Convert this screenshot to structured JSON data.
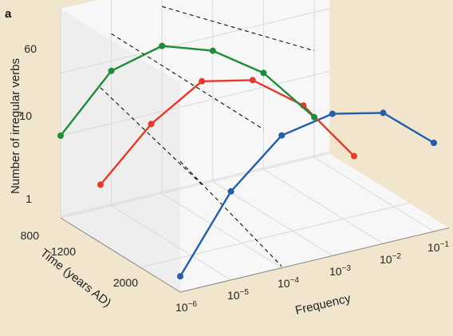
{
  "panel_label": "a",
  "colors": {
    "background": "#f1e6cd",
    "panel": "#f7f7f7",
    "back_wall": "#e9e9e9",
    "grid": "#d9d9d9",
    "series": [
      "#1f5fae",
      "#e63a27",
      "#1f8c3a"
    ],
    "guide": "#111111"
  },
  "chart_data": {
    "type": "line",
    "projection": "3d",
    "title": "",
    "xlabel": "Frequency",
    "ylabel": "Time (years AD)",
    "zlabel": "Number of irregular verbs",
    "x_scale": "log",
    "z_scale": "log",
    "grid": true,
    "x_tick_exponents": [
      "−6",
      "−5",
      "−4",
      "−3",
      "−2",
      "−1"
    ],
    "x_tick_base": "10",
    "y_tick_labels": [
      "800",
      "1200",
      "2000"
    ],
    "z_tick_labels": [
      "1",
      "10",
      "60"
    ],
    "series": [
      {
        "time": 2000,
        "color": "#1f5fae",
        "points": [
          {
            "frequency": 1e-06,
            "verbs": 1.5
          },
          {
            "frequency": 1e-05,
            "verbs": 12
          },
          {
            "frequency": 0.0001,
            "verbs": 42
          },
          {
            "frequency": 0.001,
            "verbs": 55
          },
          {
            "frequency": 0.01,
            "verbs": 40
          },
          {
            "frequency": 0.1,
            "verbs": 12
          }
        ]
      },
      {
        "time": 1200,
        "color": "#e63a27",
        "points": [
          {
            "frequency": 1e-06,
            "verbs": 5
          },
          {
            "frequency": 1e-05,
            "verbs": 20
          },
          {
            "frequency": 0.0001,
            "verbs": 48
          },
          {
            "frequency": 0.001,
            "verbs": 35
          },
          {
            "frequency": 0.01,
            "verbs": 12
          },
          {
            "frequency": 0.1,
            "verbs": 2
          }
        ]
      },
      {
        "time": 800,
        "color": "#1f8c3a",
        "points": [
          {
            "frequency": 1e-06,
            "verbs": 10
          },
          {
            "frequency": 1e-05,
            "verbs": 45
          },
          {
            "frequency": 0.0001,
            "verbs": 65
          },
          {
            "frequency": 0.001,
            "verbs": 40
          },
          {
            "frequency": 0.01,
            "verbs": 15
          },
          {
            "frequency": 0.1,
            "verbs": 3
          }
        ]
      }
    ],
    "guide_lines": {
      "style": "dashed",
      "count": 4
    }
  }
}
